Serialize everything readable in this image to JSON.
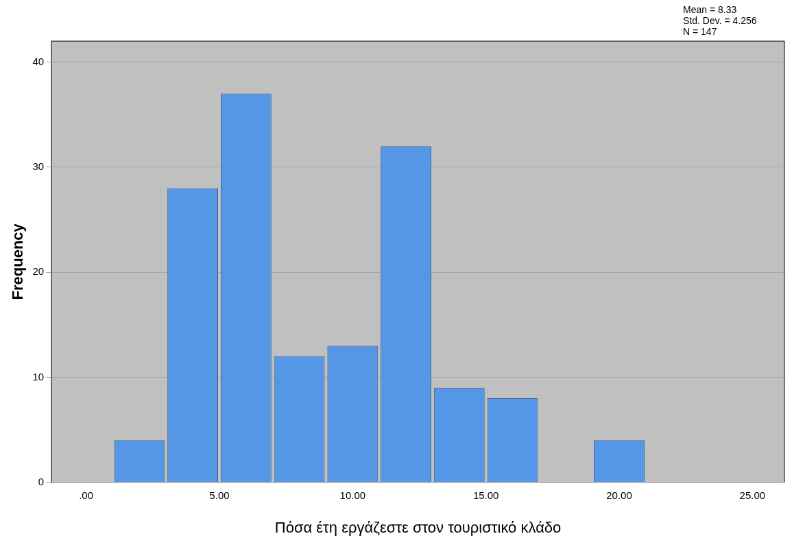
{
  "chart_data": {
    "type": "histogram",
    "xlabel": "Πόσα έτη εργάζεστε στον τουριστικό κλάδο",
    "ylabel": "Frequency",
    "annotations": [
      "Mean = 8.33",
      "Std. Dev. = 4.256",
      "N = 147"
    ],
    "bins": [
      1,
      3,
      5,
      7,
      9,
      11,
      13,
      15,
      17,
      19,
      21
    ],
    "values": [
      4,
      28,
      37,
      12,
      13,
      32,
      9,
      8,
      0,
      4
    ],
    "color": "#5596e6",
    "xlim": [
      -1.3,
      26.2
    ],
    "xticks": [
      {
        "value": 0,
        "label": ".00"
      },
      {
        "value": 5,
        "label": "5.00"
      },
      {
        "value": 10,
        "label": "10.00"
      },
      {
        "value": 15,
        "label": "15.00"
      },
      {
        "value": 20,
        "label": "20.00"
      },
      {
        "value": 25,
        "label": "25.00"
      }
    ],
    "ylim": [
      0,
      42
    ],
    "yticks": [
      0,
      10,
      20,
      30,
      40
    ],
    "grid": "y"
  }
}
